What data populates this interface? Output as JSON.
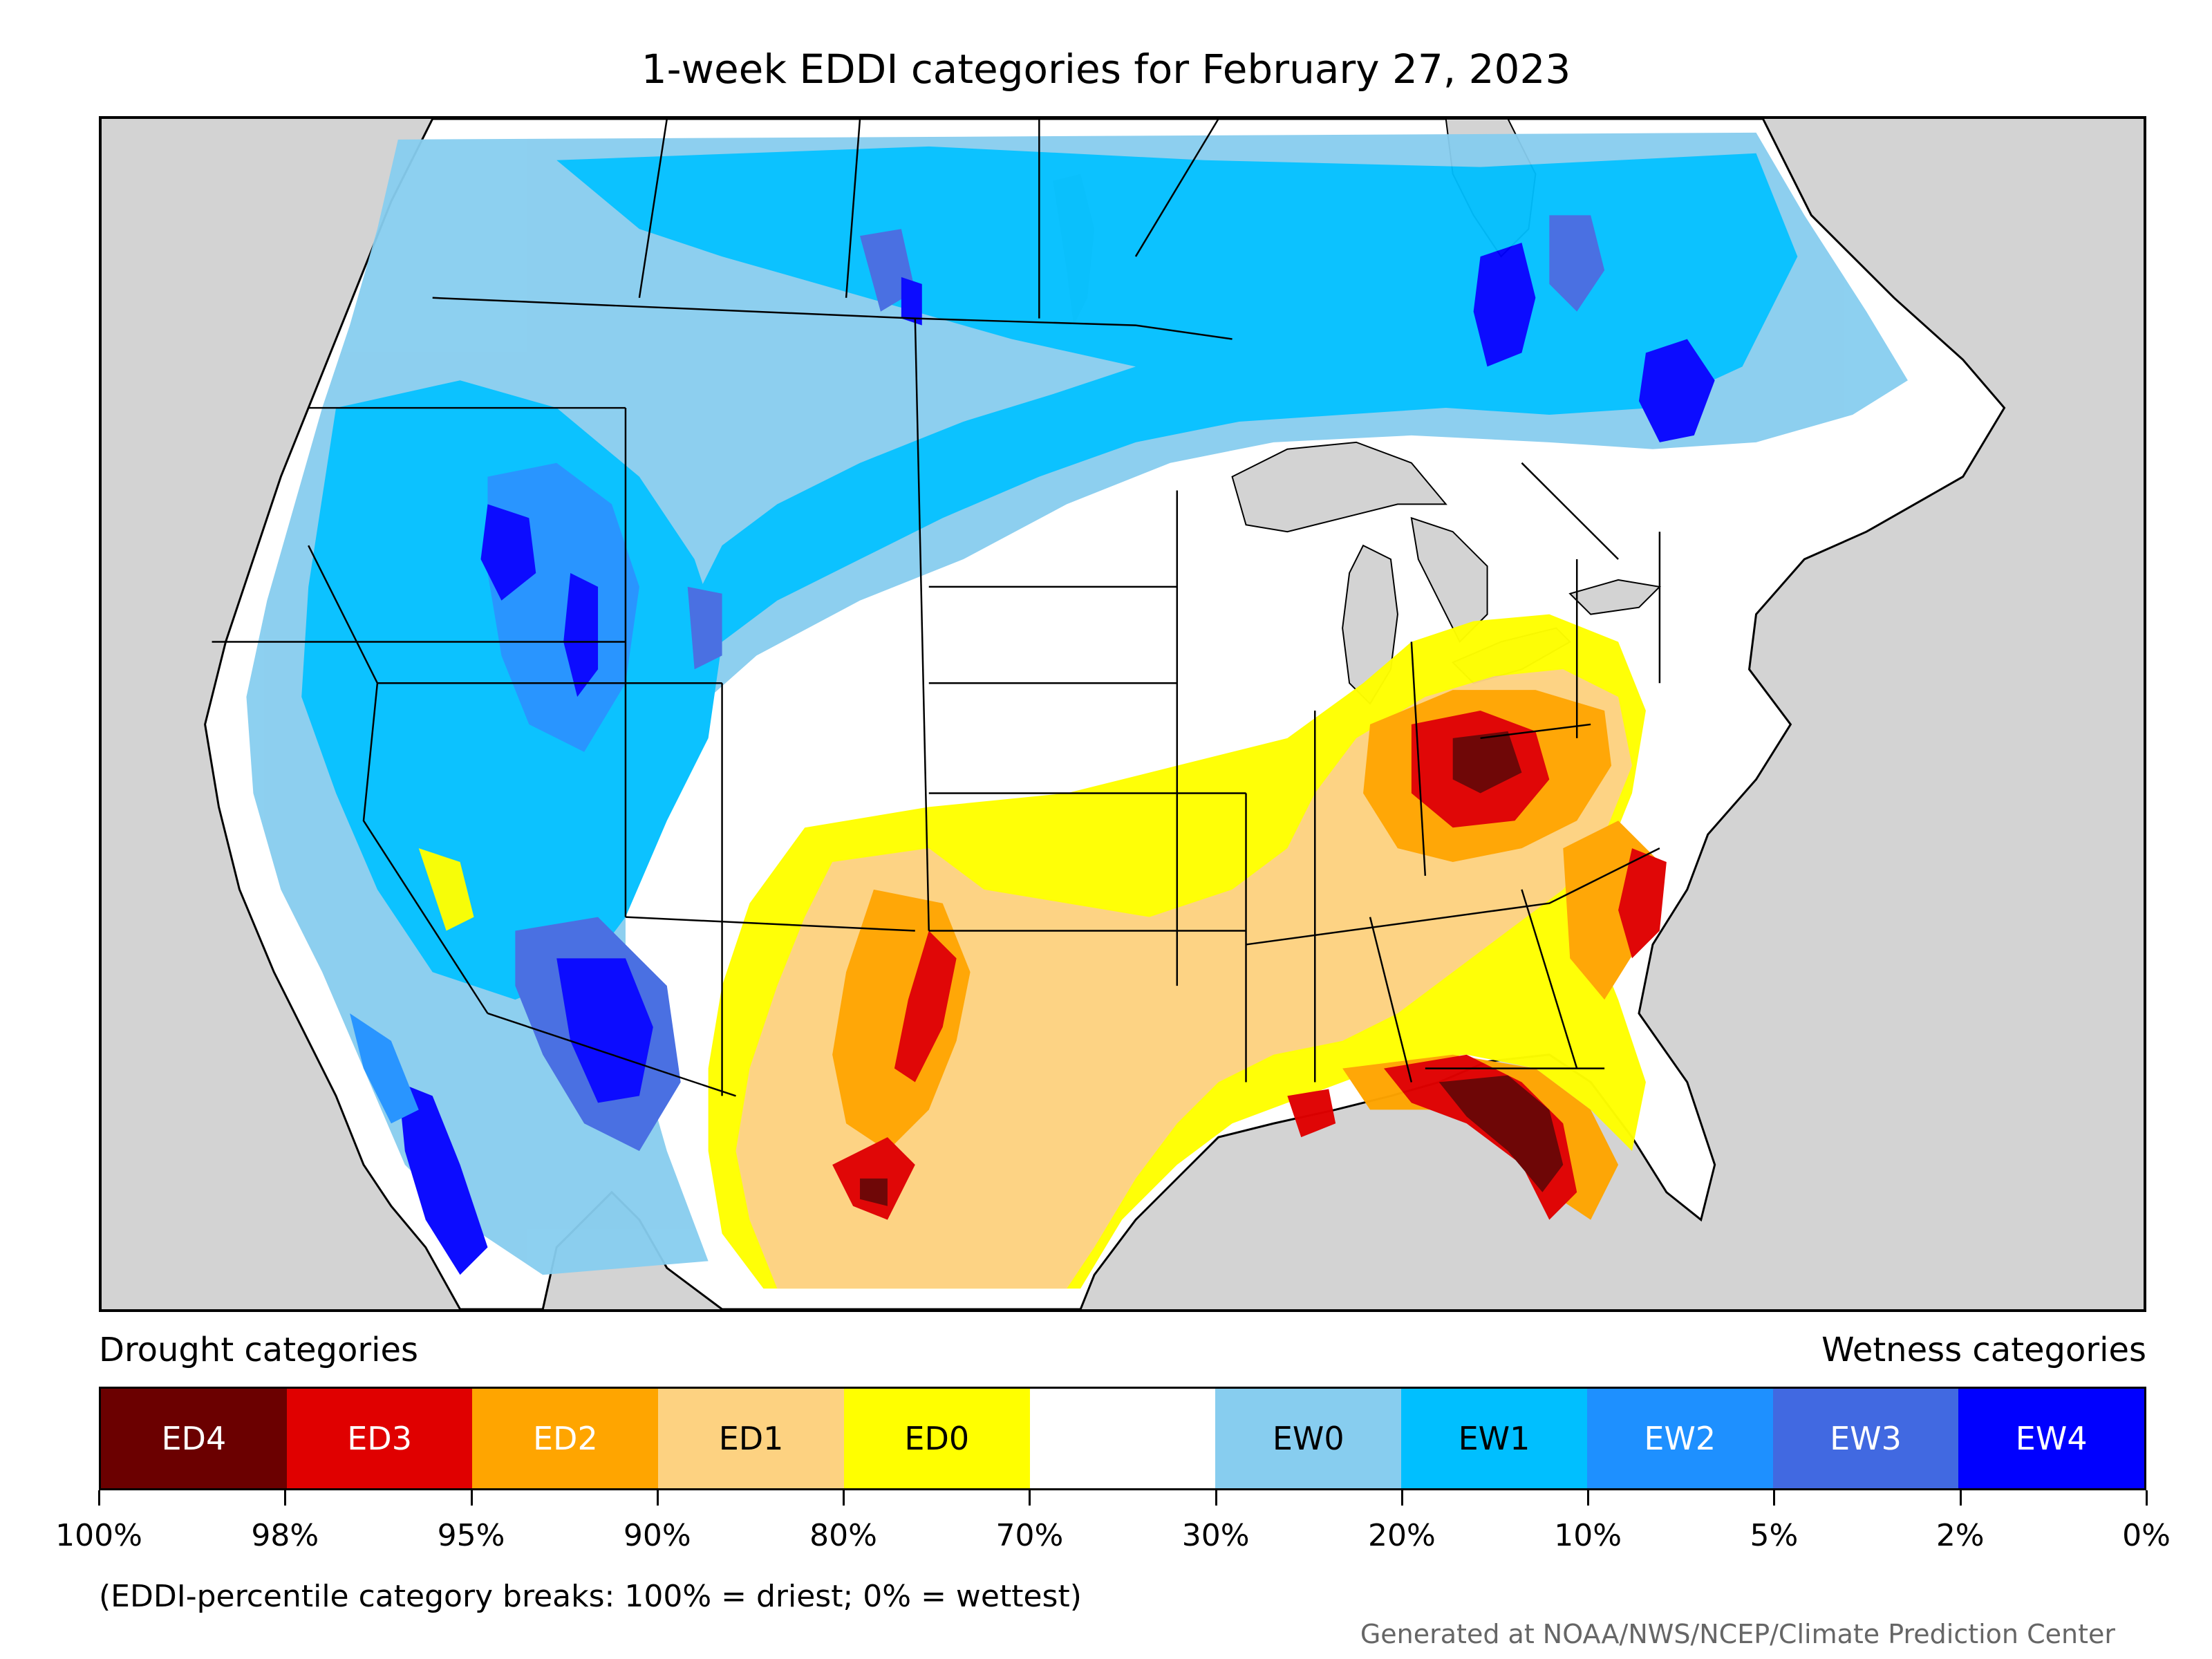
{
  "title": "1-week EDDI categories for February 27, 2023",
  "legend": {
    "drought_heading": "Drought categories",
    "wetness_heading": "Wetness categories",
    "categories": [
      {
        "label": "ED4",
        "color": "#6b0000",
        "text_color": "#ffffff"
      },
      {
        "label": "ED3",
        "color": "#e00000",
        "text_color": "#ffffff"
      },
      {
        "label": "ED2",
        "color": "#ffa500",
        "text_color": "#ffffff"
      },
      {
        "label": "ED1",
        "color": "#fdd281",
        "text_color": "#000000"
      },
      {
        "label": "ED0",
        "color": "#ffff00",
        "text_color": "#000000"
      },
      {
        "label": "",
        "color": "#ffffff",
        "text_color": "#000000"
      },
      {
        "label": "EW0",
        "color": "#87cdef",
        "text_color": "#000000"
      },
      {
        "label": "EW1",
        "color": "#00bfff",
        "text_color": "#000000"
      },
      {
        "label": "EW2",
        "color": "#1e90ff",
        "text_color": "#ffffff"
      },
      {
        "label": "EW3",
        "color": "#4169e1",
        "text_color": "#ffffff"
      },
      {
        "label": "EW4",
        "color": "#0000ff",
        "text_color": "#ffffff"
      }
    ],
    "breaks": [
      "100%",
      "98%",
      "95%",
      "90%",
      "80%",
      "70%",
      "30%",
      "20%",
      "10%",
      "5%",
      "2%",
      "0%"
    ]
  },
  "footnote": "(EDDI-percentile category breaks: 100% = driest; 0% = wettest)",
  "credit": "Generated at NOAA/NWS/NCEP/Climate Prediction Center",
  "map_colors": {
    "ocean": "#d3d3d3",
    "land": "#ffffff",
    "borders": "#000000"
  }
}
